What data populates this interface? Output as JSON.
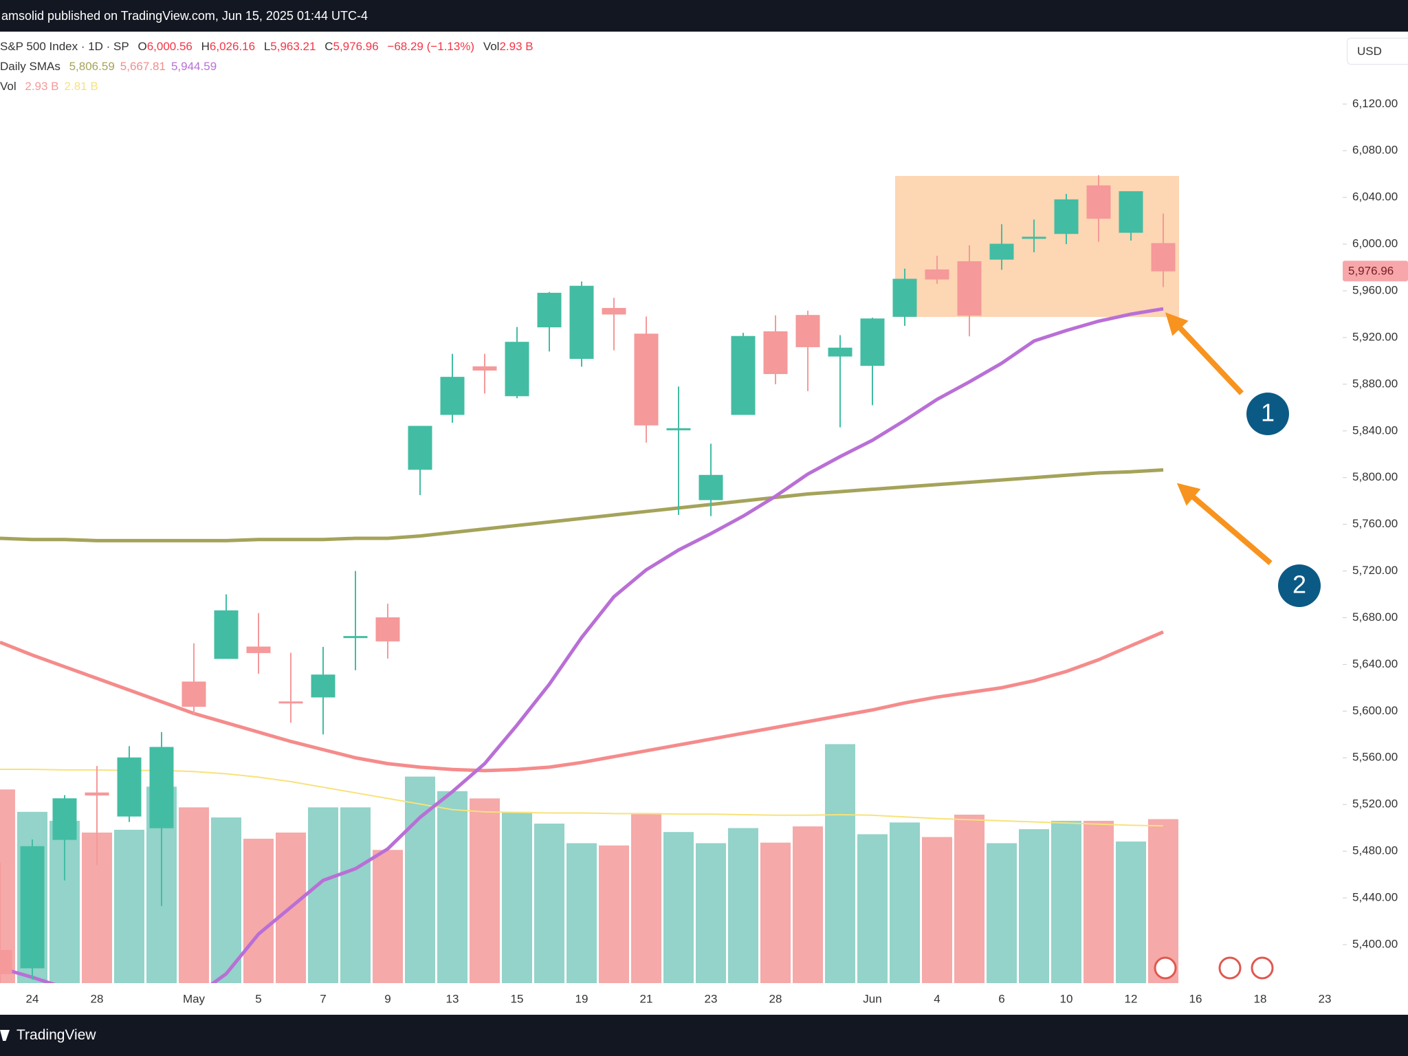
{
  "header": {
    "text": "amsolid published on TradingView.com, Jun 15, 2025 01:44 UTC-4"
  },
  "footer": {
    "brand": "TradingView"
  },
  "currency_button": "USD",
  "legend": {
    "symbol": "S&P 500 Index · 1D · SP",
    "open_label": "O",
    "open": "6,000.56",
    "high_label": "H",
    "high": "6,026.16",
    "low_label": "L",
    "low": "5,963.21",
    "close_label": "C",
    "close": "5,976.96",
    "change": "−68.29 (−1.13%)",
    "vol_label": "Vol",
    "vol": "2.93 B",
    "sma_label": "Daily SMAs",
    "sma_values": [
      "5,806.59",
      "5,667.81",
      "5,944.59"
    ],
    "volume_line_label": "Vol",
    "volume_values": [
      "2.93 B",
      "2.81 B"
    ]
  },
  "annotations": [
    "1",
    "2"
  ],
  "chart_data": {
    "type": "candlestick",
    "categories": [
      null,
      "24",
      null,
      "28",
      null,
      null,
      "May",
      null,
      "5",
      null,
      "7",
      null,
      "9",
      null,
      "13",
      null,
      "15",
      null,
      "19",
      null,
      "21",
      null,
      "23",
      null,
      "28",
      null,
      null,
      "Jun",
      null,
      "4",
      null,
      "6",
      null,
      "10",
      null,
      "12",
      null,
      "16",
      null,
      "18",
      null,
      "23"
    ],
    "open": [
      5395,
      5380,
      5490,
      5530,
      5510,
      5500,
      5625,
      5645,
      5655,
      5608,
      5612,
      5663,
      5680,
      5807,
      5854,
      5895,
      5870,
      5929,
      5902,
      5945,
      5923,
      5842,
      5781,
      5854,
      5925,
      5939,
      5904,
      5896,
      5938,
      5978,
      5985,
      5987,
      6005,
      6009,
      6050,
      6010,
      6000.56,
      null,
      null,
      null,
      null,
      null
    ],
    "high": [
      5470,
      5490,
      5528,
      5553,
      5570,
      5582,
      5658,
      5700,
      5684,
      5650,
      5655,
      5720,
      5692,
      5844,
      5906,
      5906,
      5929,
      5959,
      5968,
      5954,
      5938,
      5878,
      5829,
      5924,
      5939,
      5943,
      5922,
      5937,
      5979,
      5990,
      5999,
      6017,
      6021,
      6043,
      6059,
      6045,
      6026.16,
      null,
      null,
      null,
      null,
      null
    ],
    "low": [
      5360,
      5370,
      5455,
      5468,
      5505,
      5433,
      5597,
      5645,
      5632,
      5590,
      5580,
      5635,
      5645,
      5785,
      5847,
      5872,
      5868,
      5908,
      5895,
      5909,
      5830,
      5768,
      5767,
      5854,
      5880,
      5874,
      5843,
      5862,
      5930,
      5966,
      5921,
      5978,
      5993,
      6000,
      6002,
      6003,
      5963.21,
      null,
      null,
      null,
      null,
      null
    ],
    "close": [
      5375,
      5484,
      5525,
      5528,
      5560,
      5569,
      5604,
      5686,
      5650,
      5607,
      5631,
      5664,
      5660,
      5844,
      5886,
      5892,
      5916,
      5958,
      5964,
      5940,
      5845,
      5842,
      5802,
      5921,
      5889,
      5912,
      5911,
      5936,
      5970,
      5970,
      5939,
      6000,
      6006,
      6038,
      6022,
      6045,
      5976.96,
      null,
      null,
      null,
      null,
      null
    ],
    "last_price_label": "5,976.96",
    "up_color": "#42bda3",
    "down_color": "#f5999a",
    "volume_up_color": "#93d3c9",
    "volume_down_color": "#f5a9a9",
    "volume": [
      3.46,
      3.06,
      2.9,
      2.69,
      2.74,
      3.51,
      3.14,
      2.96,
      2.58,
      2.69,
      3.14,
      3.14,
      2.38,
      3.69,
      3.43,
      3.3,
      3.06,
      2.85,
      2.5,
      2.46,
      3.04,
      2.7,
      2.5,
      2.77,
      2.51,
      2.8,
      4.27,
      2.66,
      2.87,
      2.61,
      3.01,
      2.5,
      2.75,
      2.9,
      2.9,
      2.53,
      2.93,
      null,
      null,
      null,
      null,
      null
    ],
    "volume_ma": {
      "color": "#f7e27a",
      "values": [
        3.82,
        3.82,
        3.81,
        3.81,
        3.8,
        3.8,
        3.78,
        3.74,
        3.68,
        3.6,
        3.5,
        3.4,
        3.3,
        3.2,
        3.1,
        3.06,
        3.05,
        3.04,
        3.04,
        3.03,
        3.03,
        3.02,
        3.02,
        3.01,
        3.0,
        3.0,
        3.01,
        3.0,
        2.97,
        2.94,
        2.92,
        2.9,
        2.88,
        2.86,
        2.84,
        2.82,
        2.81,
        null,
        null,
        null,
        null,
        null
      ]
    },
    "series": [
      {
        "color": "#a4a35a",
        "values": [
          5748,
          5747,
          5747,
          5746,
          5746,
          5746,
          5746,
          5746,
          5747,
          5747,
          5747,
          5748,
          5748,
          5750,
          5753,
          5756,
          5759,
          5762,
          5765,
          5768,
          5771,
          5774,
          5777,
          5780,
          5783,
          5786,
          5788,
          5790,
          5792,
          5794,
          5796,
          5798,
          5800,
          5802,
          5804,
          5805,
          5806.59,
          null,
          null,
          null,
          null,
          null
        ]
      },
      {
        "color": "#f58b8b",
        "values": [
          5659,
          5648,
          5638,
          5628,
          5618,
          5608,
          5598,
          5590,
          5582,
          5574,
          5567,
          5560,
          5555,
          5552,
          5550,
          5549,
          5550,
          5552,
          5556,
          5561,
          5566,
          5571,
          5576,
          5581,
          5586,
          5591,
          5596,
          5601,
          5607,
          5612,
          5616,
          5620,
          5626,
          5634,
          5644,
          5656,
          5667.81,
          null,
          null,
          null,
          null,
          null
        ]
      },
      {
        "color": "#b96fd6",
        "values": [
          5380,
          5372,
          5363,
          5355,
          5350,
          5348,
          5355,
          5375,
          5409,
          5432,
          5455,
          5465,
          5482,
          5509,
          5531,
          5555,
          5588,
          5623,
          5663,
          5698,
          5721,
          5738,
          5752,
          5767,
          5784,
          5803,
          5818,
          5832,
          5849,
          5867,
          5882,
          5898,
          5917,
          5926,
          5934,
          5940,
          5944.59,
          null,
          null,
          null,
          null,
          null
        ]
      }
    ],
    "ylim": [
      5367,
      6182
    ],
    "y2lim": [
      0,
      17
    ],
    "yticks": [
      {
        "value": 5400,
        "label": "5,400.00"
      },
      {
        "value": 5440,
        "label": "5,440.00"
      },
      {
        "value": 5480,
        "label": "5,480.00"
      },
      {
        "value": 5520,
        "label": "5,520.00"
      },
      {
        "value": 5560,
        "label": "5,560.00"
      },
      {
        "value": 5600,
        "label": "5,600.00"
      },
      {
        "value": 5640,
        "label": "5,640.00"
      },
      {
        "value": 5680,
        "label": "5,680.00"
      },
      {
        "value": 5720,
        "label": "5,720.00"
      },
      {
        "value": 5760,
        "label": "5,760.00"
      },
      {
        "value": 5800,
        "label": "5,800.00"
      },
      {
        "value": 5840,
        "label": "5,840.00"
      },
      {
        "value": 5880,
        "label": "5,880.00"
      },
      {
        "value": 5920,
        "label": "5,920.00"
      },
      {
        "value": 5960,
        "label": "5,960.00"
      },
      {
        "value": 6000,
        "label": "6,000.00"
      },
      {
        "value": 6040,
        "label": "6,040.00"
      },
      {
        "value": 6080,
        "label": "6,080.00"
      },
      {
        "value": 6120,
        "label": "6,120.00"
      }
    ],
    "grid": false
  }
}
